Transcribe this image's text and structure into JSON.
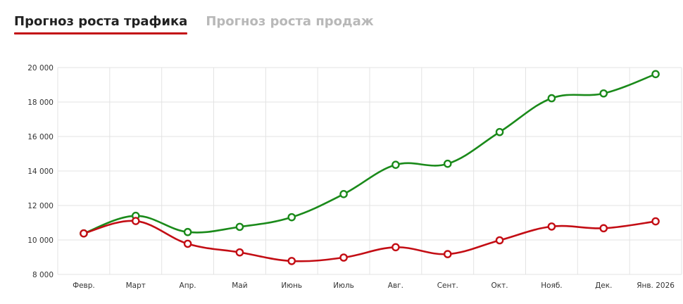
{
  "tabs": [
    {
      "label": "Прогноз роста трафика",
      "active": true
    },
    {
      "label": "Прогноз роста продаж",
      "active": false
    }
  ],
  "colors": {
    "accent": "#c30d14",
    "series_green": "#1a8a1a",
    "series_red": "#c30d14",
    "grid": "#e3e3e3",
    "tab_inactive": "#b8b8b8"
  },
  "chart_data": {
    "type": "line",
    "categories": [
      "Февр.",
      "Март",
      "Апр.",
      "Май",
      "Июнь",
      "Июль",
      "Авг.",
      "Сент.",
      "Окт.",
      "Нояб.",
      "Дек.",
      "Янв. 2026"
    ],
    "y_ticks": [
      8000,
      10000,
      12000,
      14000,
      16000,
      18000,
      20000
    ],
    "y_tick_labels": [
      "8 000",
      "10 000",
      "12 000",
      "14 000",
      "16 000",
      "18 000",
      "20 000"
    ],
    "ylim": [
      8000,
      20000
    ],
    "grid": true,
    "legend": "none",
    "series": [
      {
        "color": "#1a8a1a",
        "values": [
          10380,
          11400,
          10460,
          10760,
          11320,
          12660,
          14360,
          14420,
          16260,
          18220,
          18500,
          19620
        ]
      },
      {
        "color": "#c30d14",
        "values": [
          10380,
          11100,
          9780,
          9280,
          8780,
          8980,
          9580,
          9180,
          9980,
          10780,
          10680,
          11080
        ]
      }
    ]
  }
}
